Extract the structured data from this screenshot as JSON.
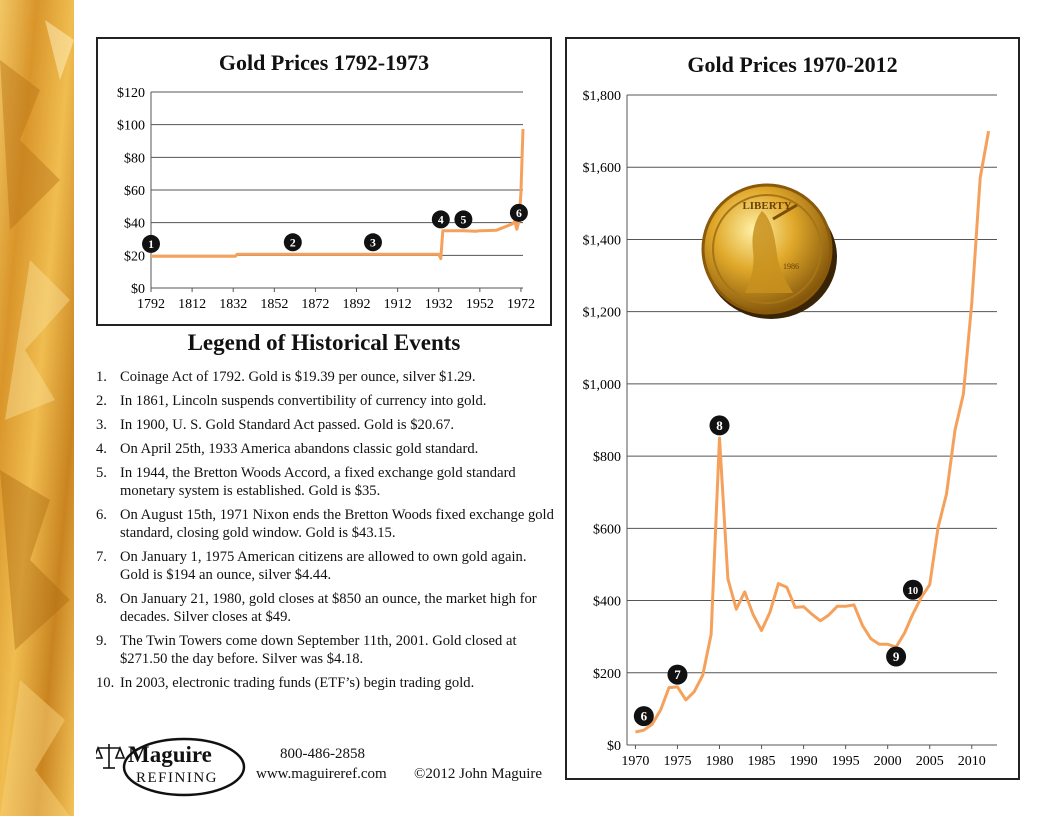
{
  "left_chart_title": "Gold Prices 1792-1973",
  "right_chart_title": "Gold Prices 1970-2012",
  "legend_title": "Legend of Historical Events",
  "events": [
    {
      "num": "1.",
      "text": "Coinage Act of 1792. Gold is $19.39 per ounce, silver $1.29."
    },
    {
      "num": "2.",
      "text": "In 1861, Lincoln suspends convertibility of currency into gold."
    },
    {
      "num": "3.",
      "text": "In 1900, U. S. Gold Standard Act passed. Gold is $20.67."
    },
    {
      "num": "4.",
      "text": "On April 25th, 1933 America abandons classic gold standard."
    },
    {
      "num": "5.",
      "text": "In 1944, the Bretton Woods Accord, a fixed exchange gold standard monetary system is established. Gold is $35."
    },
    {
      "num": "6.",
      "text": "On August 15th, 1971 Nixon ends the Bretton Woods fixed exchange gold standard, closing gold window. Gold is $43.15."
    },
    {
      "num": "7.",
      "text": "On January 1, 1975 American citizens are allowed to own gold again. Gold is $194 an ounce, silver $4.44."
    },
    {
      "num": "8.",
      "text": "On January 21, 1980, gold closes at $850 an ounce, the market high for decades. Silver closes at $49."
    },
    {
      "num": "9.",
      "text": "The Twin Towers come down September 11th, 2001. Gold closed at $271.50 the day before. Silver was $4.18."
    },
    {
      "num": "10.",
      "text": "In 2003, electronic trading funds (ETF’s) begin trading gold."
    }
  ],
  "footer": {
    "logo_name": "Maguire",
    "logo_sub": "REFINING",
    "phone": "800-486-2858",
    "website": "www.maguireref.com",
    "copyright": "©2012 John Maguire"
  },
  "coin": {
    "top_text": "LIBERTY",
    "year": "1986"
  },
  "colors": {
    "line": "#f5a15c",
    "marker": "#111111",
    "grid": "#555555",
    "gold_strip": "#e8b23a"
  },
  "chart_data": [
    {
      "type": "line",
      "title": "Gold Prices 1792-1973",
      "xlim": [
        1792,
        1973
      ],
      "ylim": [
        0,
        120
      ],
      "x_ticks": [
        1792,
        1812,
        1832,
        1852,
        1872,
        1892,
        1912,
        1932,
        1952,
        1972
      ],
      "x_tick_labels": [
        "1792",
        "1812",
        "1832",
        "1852",
        "1872",
        "1892",
        "1912",
        "1932",
        "1952",
        "1972"
      ],
      "y_ticks": [
        0,
        20,
        40,
        60,
        80,
        100,
        120
      ],
      "y_tick_labels": [
        "$0",
        "$20",
        "$40",
        "$60",
        "$80",
        "$100",
        "$120"
      ],
      "grid": "horizontal",
      "series": [
        {
          "x": [
            1792,
            1833,
            1834,
            1860,
            1900,
            1930,
            1932,
            1933,
            1934,
            1944,
            1950,
            1952,
            1953,
            1960,
            1968,
            1969,
            1970,
            1971,
            1972,
            1973
          ],
          "y": [
            19.39,
            19.39,
            20.67,
            20.67,
            20.67,
            20.67,
            20.67,
            18,
            35,
            35,
            34.7,
            35,
            35,
            35.3,
            39.3,
            41.1,
            36,
            40.8,
            58,
            97.3
          ]
        }
      ],
      "markers": [
        {
          "label": "1",
          "x": 1792,
          "y": 27
        },
        {
          "label": "2",
          "x": 1861,
          "y": 28
        },
        {
          "label": "3",
          "x": 1900,
          "y": 28
        },
        {
          "label": "4",
          "x": 1933,
          "y": 42
        },
        {
          "label": "5",
          "x": 1944,
          "y": 42
        },
        {
          "label": "6",
          "x": 1971,
          "y": 46
        }
      ]
    },
    {
      "type": "line",
      "title": "Gold Prices 1970-2012",
      "xlim": [
        1969,
        2013
      ],
      "ylim": [
        0,
        1800
      ],
      "x_ticks": [
        1970,
        1975,
        1980,
        1985,
        1990,
        1995,
        2000,
        2005,
        2010
      ],
      "x_tick_labels": [
        "1970",
        "1975",
        "1980",
        "1985",
        "1990",
        "1995",
        "2000",
        "2005",
        "2010"
      ],
      "y_ticks": [
        0,
        200,
        400,
        600,
        800,
        1000,
        1200,
        1400,
        1600,
        1800
      ],
      "y_tick_labels": [
        "$0",
        "$200",
        "$400",
        "$600",
        "$800",
        "$1,000",
        "$1,200",
        "$1,400",
        "$1,600",
        "$1,800"
      ],
      "grid": "horizontal",
      "series": [
        {
          "x": [
            1970,
            1971,
            1972,
            1973,
            1974,
            1975,
            1976,
            1977,
            1978,
            1979,
            1980,
            1981,
            1982,
            1983,
            1984,
            1985,
            1986,
            1987,
            1988,
            1989,
            1990,
            1991,
            1992,
            1993,
            1994,
            1995,
            1996,
            1997,
            1998,
            1999,
            2000,
            2001,
            2002,
            2003,
            2004,
            2005,
            2006,
            2007,
            2008,
            2009,
            2010,
            2011,
            2012
          ],
          "y": [
            36,
            41,
            58,
            97,
            159,
            161,
            125,
            148,
            193,
            306,
            850,
            460,
            376,
            424,
            361,
            317,
            368,
            447,
            437,
            381,
            383,
            362,
            344,
            360,
            384,
            384,
            388,
            331,
            294,
            279,
            279,
            271.5,
            310,
            363,
            409,
            444,
            603,
            695,
            872,
            972,
            1225,
            1571,
            1700
          ]
        }
      ],
      "markers": [
        {
          "label": "6",
          "x": 1971,
          "y": 80
        },
        {
          "label": "7",
          "x": 1975,
          "y": 195
        },
        {
          "label": "8",
          "x": 1980,
          "y": 885
        },
        {
          "label": "9",
          "x": 2001,
          "y": 245
        },
        {
          "label": "10",
          "x": 2003,
          "y": 430
        }
      ]
    }
  ]
}
